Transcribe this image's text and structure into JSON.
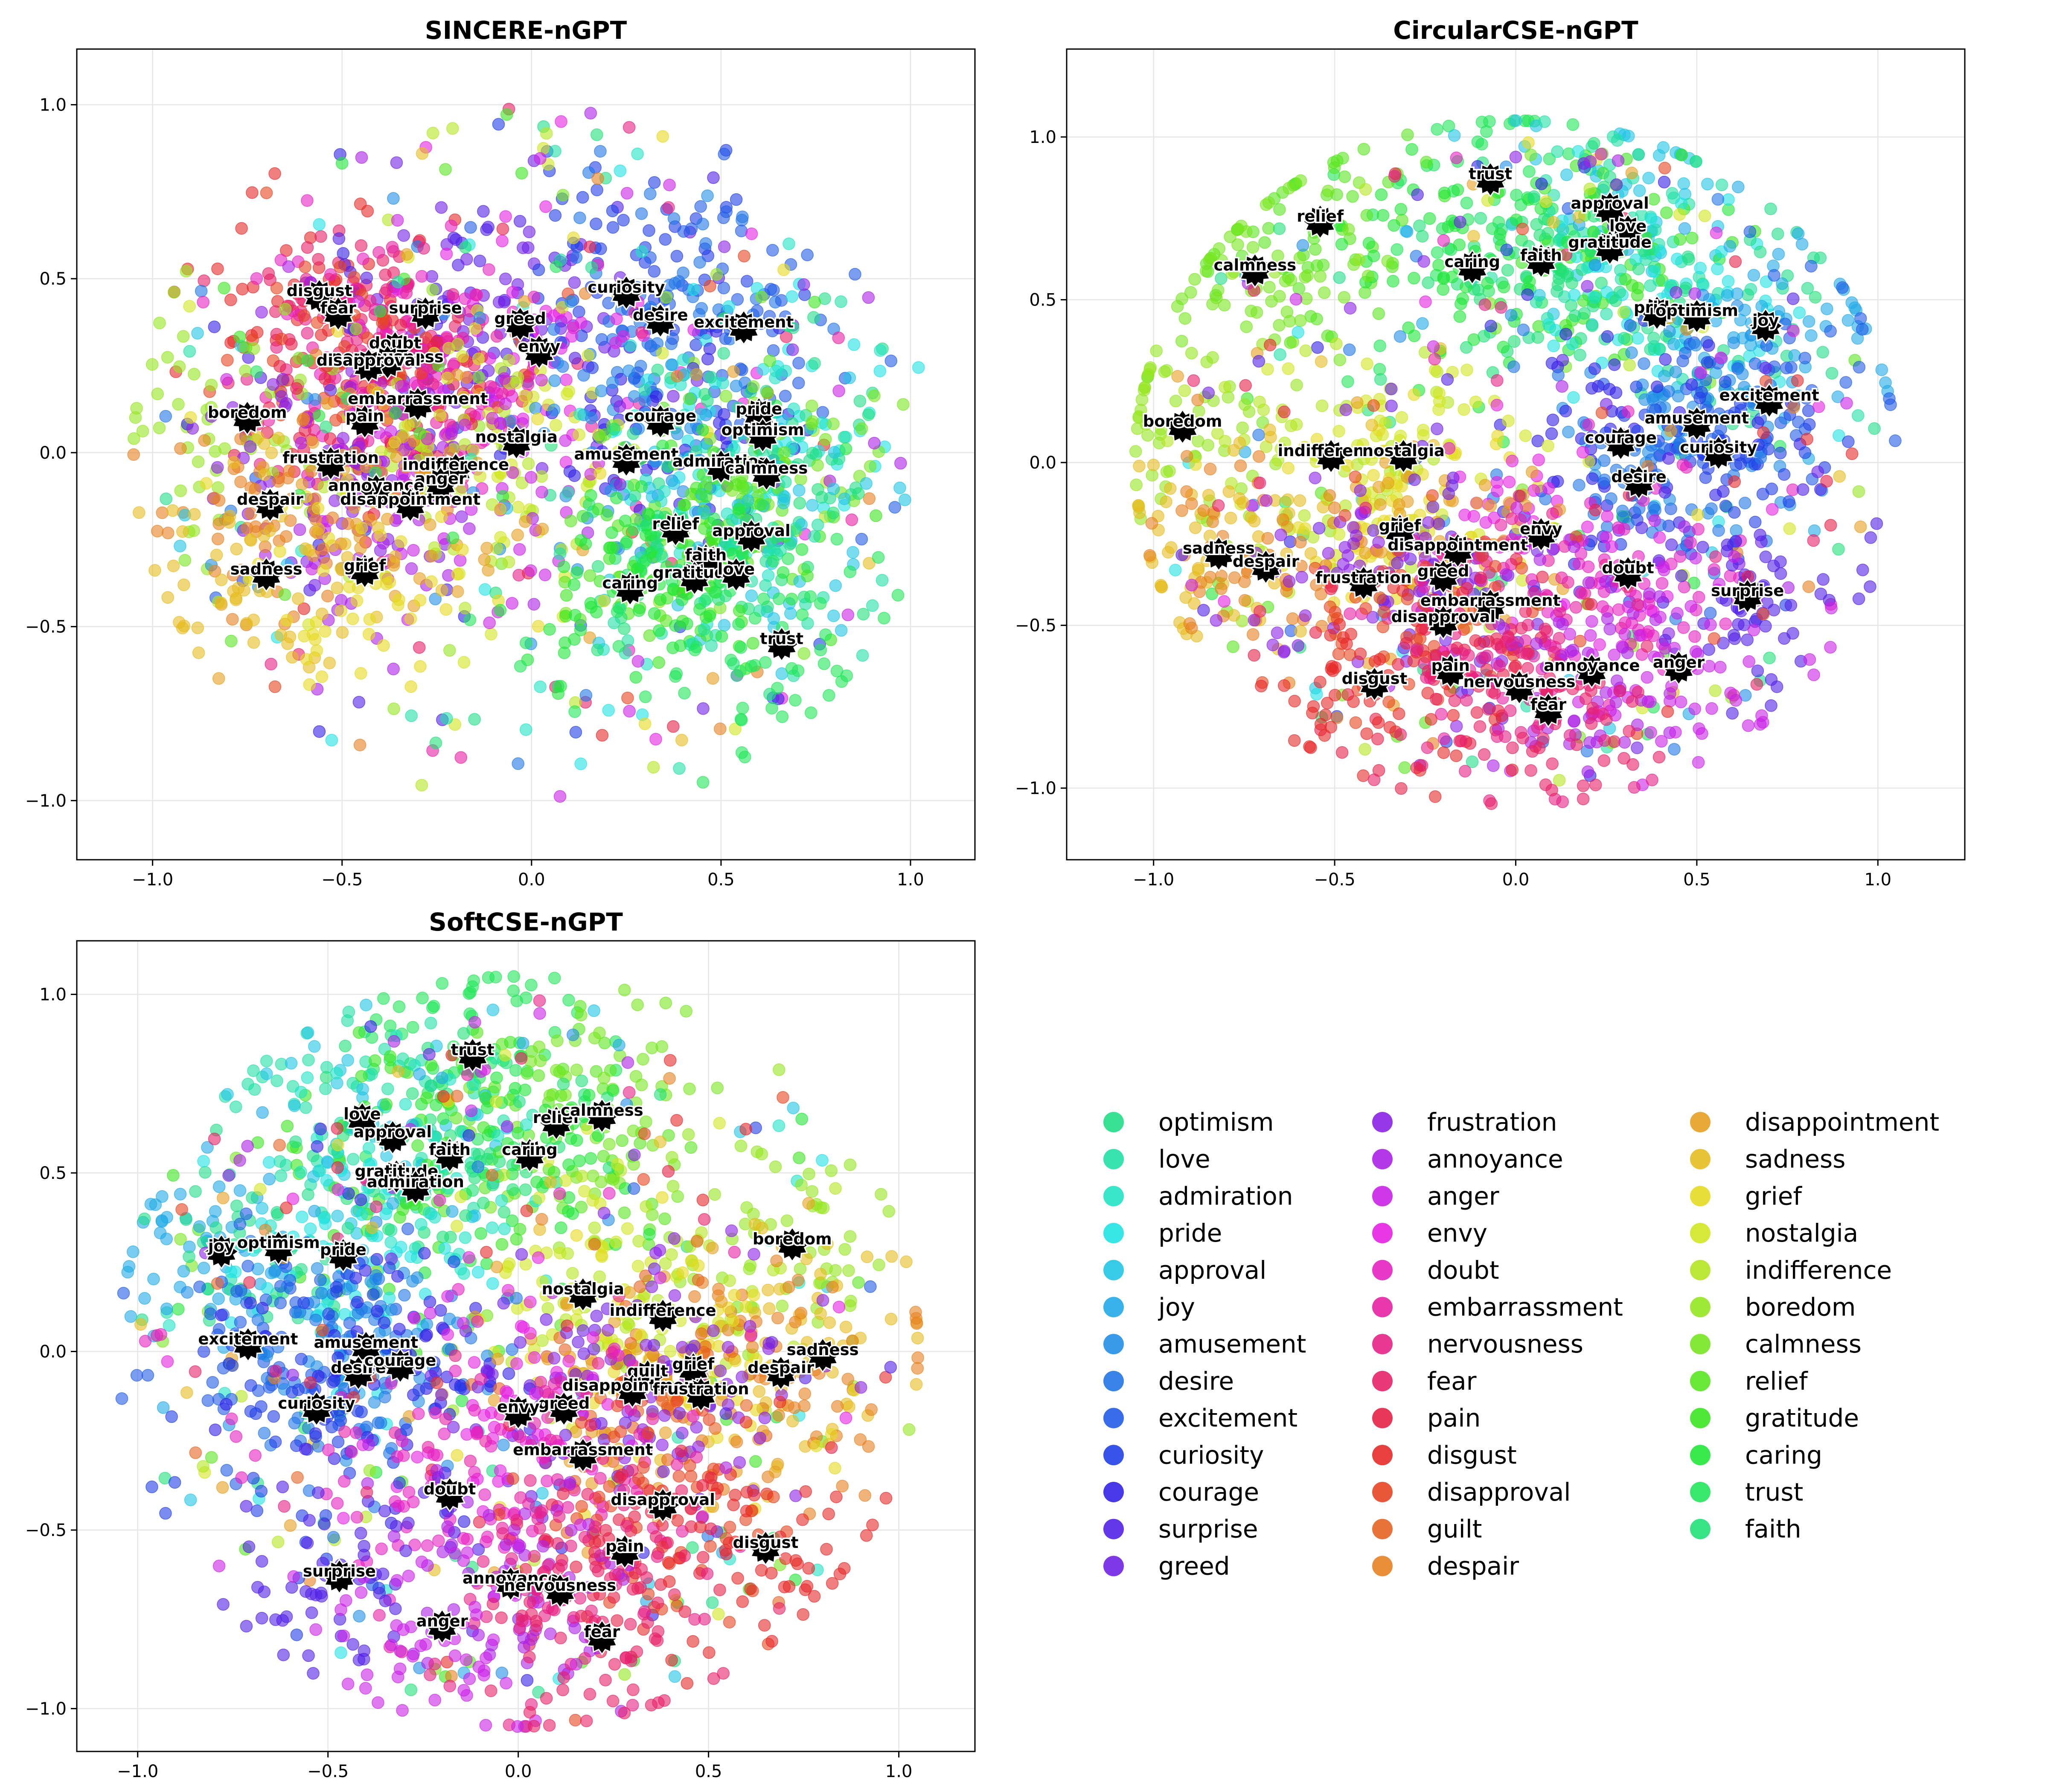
{
  "chart_data": [
    {
      "type": "scatter",
      "title": "SINCERE-nGPT",
      "xlabel": "",
      "ylabel": "",
      "xlim": [
        -1.2,
        1.17
      ],
      "ylim": [
        -1.17,
        1.16
      ],
      "xticks": [
        -1.0,
        -0.5,
        0.0,
        0.5,
        1.0
      ],
      "yticks": [
        -1.0,
        -0.5,
        0.0,
        0.5,
        1.0
      ],
      "xtick_labels": [
        "−1.0",
        "−0.5",
        "0.0",
        "0.5",
        "1.0"
      ],
      "ytick_labels": [
        "−1.0",
        "−0.5",
        "0.0",
        "0.5",
        "1.0"
      ],
      "grid": true,
      "centroids": [
        {
          "label": "disgust",
          "x": -0.56,
          "y": 0.45
        },
        {
          "label": "fear",
          "x": -0.51,
          "y": 0.4
        },
        {
          "label": "surprise",
          "x": -0.28,
          "y": 0.4
        },
        {
          "label": "greed",
          "x": -0.03,
          "y": 0.37
        },
        {
          "label": "curiosity",
          "x": 0.25,
          "y": 0.46
        },
        {
          "label": "desire",
          "x": 0.34,
          "y": 0.38
        },
        {
          "label": "excitement",
          "x": 0.56,
          "y": 0.36
        },
        {
          "label": "doubt",
          "x": -0.36,
          "y": 0.3
        },
        {
          "label": "envy",
          "x": 0.02,
          "y": 0.29
        },
        {
          "label": "nervousness",
          "x": -0.38,
          "y": 0.26
        },
        {
          "label": "disapproval",
          "x": -0.43,
          "y": 0.25
        },
        {
          "label": "embarrassment",
          "x": -0.3,
          "y": 0.14
        },
        {
          "label": "boredom",
          "x": -0.75,
          "y": 0.1
        },
        {
          "label": "pain",
          "x": -0.44,
          "y": 0.09
        },
        {
          "label": "pride",
          "x": 0.6,
          "y": 0.11
        },
        {
          "label": "courage",
          "x": 0.34,
          "y": 0.09
        },
        {
          "label": "optimism",
          "x": 0.61,
          "y": 0.05
        },
        {
          "label": "nostalgia",
          "x": -0.04,
          "y": 0.03
        },
        {
          "label": "amusement",
          "x": 0.25,
          "y": -0.02
        },
        {
          "label": "admiration",
          "x": 0.5,
          "y": -0.04
        },
        {
          "label": "calmness",
          "x": 0.62,
          "y": -0.06
        },
        {
          "label": "frustration",
          "x": -0.53,
          "y": -0.03
        },
        {
          "label": "indifference",
          "x": -0.2,
          "y": -0.05
        },
        {
          "label": "anger",
          "x": -0.24,
          "y": -0.09
        },
        {
          "label": "annoyance",
          "x": -0.41,
          "y": -0.11
        },
        {
          "label": "despair",
          "x": -0.69,
          "y": -0.15
        },
        {
          "label": "disappointment",
          "x": -0.32,
          "y": -0.15
        },
        {
          "label": "relief",
          "x": 0.38,
          "y": -0.22
        },
        {
          "label": "approval",
          "x": 0.58,
          "y": -0.24
        },
        {
          "label": "faith",
          "x": 0.46,
          "y": -0.31
        },
        {
          "label": "gratitude",
          "x": 0.43,
          "y": -0.36
        },
        {
          "label": "love",
          "x": 0.54,
          "y": -0.35
        },
        {
          "label": "sadness",
          "x": -0.7,
          "y": -0.35
        },
        {
          "label": "grief",
          "x": -0.44,
          "y": -0.34
        },
        {
          "label": "caring",
          "x": 0.26,
          "y": -0.39
        },
        {
          "label": "trust",
          "x": 0.66,
          "y": -0.55
        }
      ]
    },
    {
      "type": "scatter",
      "title": "CircularCSE-nGPT",
      "xlabel": "",
      "ylabel": "",
      "xlim": [
        -1.24,
        1.24
      ],
      "ylim": [
        -1.22,
        1.27
      ],
      "xticks": [
        -1.0,
        -0.5,
        0.0,
        0.5,
        1.0
      ],
      "yticks": [
        -1.0,
        -0.5,
        0.0,
        0.5,
        1.0
      ],
      "xtick_labels": [
        "−1.0",
        "−0.5",
        "0.0",
        "0.5",
        "1.0"
      ],
      "ytick_labels": [
        "−1.0",
        "−0.5",
        "0.0",
        "0.5",
        "1.0"
      ],
      "grid": true,
      "centroids": [
        {
          "label": "trust",
          "x": -0.07,
          "y": 0.87
        },
        {
          "label": "approval",
          "x": 0.26,
          "y": 0.78
        },
        {
          "label": "love",
          "x": 0.31,
          "y": 0.71
        },
        {
          "label": "gratitude",
          "x": 0.26,
          "y": 0.66
        },
        {
          "label": "relief",
          "x": -0.54,
          "y": 0.74
        },
        {
          "label": "faith",
          "x": 0.07,
          "y": 0.62
        },
        {
          "label": "caring",
          "x": -0.12,
          "y": 0.6
        },
        {
          "label": "calmness",
          "x": -0.72,
          "y": 0.59
        },
        {
          "label": "pride",
          "x": 0.39,
          "y": 0.46
        },
        {
          "label": "optimism",
          "x": 0.5,
          "y": 0.45
        },
        {
          "label": "joy",
          "x": 0.69,
          "y": 0.42
        },
        {
          "label": "excitement",
          "x": 0.7,
          "y": 0.19
        },
        {
          "label": "amusement",
          "x": 0.5,
          "y": 0.12
        },
        {
          "label": "boredom",
          "x": -0.92,
          "y": 0.11
        },
        {
          "label": "courage",
          "x": 0.29,
          "y": 0.06
        },
        {
          "label": "curiosity",
          "x": 0.56,
          "y": 0.03
        },
        {
          "label": "indifference",
          "x": -0.51,
          "y": 0.02
        },
        {
          "label": "nostalgia",
          "x": -0.31,
          "y": 0.02
        },
        {
          "label": "desire",
          "x": 0.34,
          "y": -0.06
        },
        {
          "label": "grief",
          "x": -0.32,
          "y": -0.21
        },
        {
          "label": "envy",
          "x": 0.07,
          "y": -0.22
        },
        {
          "label": "disappointment",
          "x": -0.16,
          "y": -0.27
        },
        {
          "label": "sadness",
          "x": -0.82,
          "y": -0.28
        },
        {
          "label": "despair",
          "x": -0.69,
          "y": -0.32
        },
        {
          "label": "frustration",
          "x": -0.42,
          "y": -0.37
        },
        {
          "label": "greed",
          "x": -0.2,
          "y": -0.35
        },
        {
          "label": "doubt",
          "x": 0.31,
          "y": -0.34
        },
        {
          "label": "surprise",
          "x": 0.64,
          "y": -0.41
        },
        {
          "label": "embarrassment",
          "x": -0.07,
          "y": -0.44
        },
        {
          "label": "disapproval",
          "x": -0.2,
          "y": -0.49
        },
        {
          "label": "pain",
          "x": -0.18,
          "y": -0.64
        },
        {
          "label": "annoyance",
          "x": 0.21,
          "y": -0.64
        },
        {
          "label": "anger",
          "x": 0.45,
          "y": -0.63
        },
        {
          "label": "disgust",
          "x": -0.39,
          "y": -0.68
        },
        {
          "label": "nervousness",
          "x": 0.01,
          "y": -0.69
        },
        {
          "label": "fear",
          "x": 0.09,
          "y": -0.76
        }
      ]
    },
    {
      "type": "scatter",
      "title": "SoftCSE-nGPT",
      "xlabel": "",
      "ylabel": "",
      "xlim": [
        -1.16,
        1.2
      ],
      "ylim": [
        -1.12,
        1.15
      ],
      "xticks": [
        -1.0,
        -0.5,
        0.0,
        0.5,
        1.0
      ],
      "yticks": [
        -1.0,
        -0.5,
        0.0,
        0.5,
        1.0
      ],
      "xtick_labels": [
        "−1.0",
        "−0.5",
        "0.0",
        "0.5",
        "1.0"
      ],
      "ytick_labels": [
        "−1.0",
        "−0.5",
        "0.0",
        "0.5",
        "1.0"
      ],
      "grid": true,
      "centroids": [
        {
          "label": "trust",
          "x": -0.12,
          "y": 0.83
        },
        {
          "label": "love",
          "x": -0.41,
          "y": 0.65
        },
        {
          "label": "relief",
          "x": 0.1,
          "y": 0.64
        },
        {
          "label": "calmness",
          "x": 0.22,
          "y": 0.66
        },
        {
          "label": "approval",
          "x": -0.33,
          "y": 0.6
        },
        {
          "label": "faith",
          "x": -0.18,
          "y": 0.55
        },
        {
          "label": "caring",
          "x": 0.03,
          "y": 0.55
        },
        {
          "label": "gratitude",
          "x": -0.32,
          "y": 0.49
        },
        {
          "label": "admiration",
          "x": -0.27,
          "y": 0.46
        },
        {
          "label": "joy",
          "x": -0.78,
          "y": 0.28
        },
        {
          "label": "optimism",
          "x": -0.63,
          "y": 0.29
        },
        {
          "label": "pride",
          "x": -0.46,
          "y": 0.27
        },
        {
          "label": "boredom",
          "x": 0.72,
          "y": 0.3
        },
        {
          "label": "nostalgia",
          "x": 0.17,
          "y": 0.16
        },
        {
          "label": "indifference",
          "x": 0.38,
          "y": 0.1
        },
        {
          "label": "excitement",
          "x": -0.71,
          "y": 0.02
        },
        {
          "label": "amusement",
          "x": -0.4,
          "y": 0.01
        },
        {
          "label": "sadness",
          "x": 0.8,
          "y": -0.01
        },
        {
          "label": "desire",
          "x": -0.42,
          "y": -0.06
        },
        {
          "label": "courage",
          "x": -0.31,
          "y": -0.04
        },
        {
          "label": "despair",
          "x": 0.69,
          "y": -0.06
        },
        {
          "label": "grief",
          "x": 0.46,
          "y": -0.05
        },
        {
          "label": "guilt",
          "x": 0.34,
          "y": -0.07
        },
        {
          "label": "disappointment",
          "x": 0.3,
          "y": -0.11
        },
        {
          "label": "frustration",
          "x": 0.48,
          "y": -0.12
        },
        {
          "label": "greed",
          "x": 0.12,
          "y": -0.16
        },
        {
          "label": "envy",
          "x": 0.0,
          "y": -0.17
        },
        {
          "label": "curiosity",
          "x": -0.53,
          "y": -0.16
        },
        {
          "label": "embarrassment",
          "x": 0.17,
          "y": -0.29
        },
        {
          "label": "doubt",
          "x": -0.18,
          "y": -0.4
        },
        {
          "label": "disapproval",
          "x": 0.38,
          "y": -0.43
        },
        {
          "label": "pain",
          "x": 0.28,
          "y": -0.56
        },
        {
          "label": "disgust",
          "x": 0.65,
          "y": -0.55
        },
        {
          "label": "surprise",
          "x": -0.47,
          "y": -0.63
        },
        {
          "label": "annoyance",
          "x": -0.02,
          "y": -0.65
        },
        {
          "label": "nervousness",
          "x": 0.11,
          "y": -0.67
        },
        {
          "label": "anger",
          "x": -0.2,
          "y": -0.77
        },
        {
          "label": "fear",
          "x": 0.22,
          "y": -0.8
        }
      ]
    }
  ],
  "legend": {
    "placement": "bottom-right",
    "columns": [
      [
        {
          "label": "optimism",
          "color": "#22dd88"
        },
        {
          "label": "love",
          "color": "#22e0a6"
        },
        {
          "label": "admiration",
          "color": "#22e3c4"
        },
        {
          "label": "pride",
          "color": "#22e2e3"
        },
        {
          "label": "approval",
          "color": "#22c5e4"
        },
        {
          "label": "joy",
          "color": "#22aae6"
        },
        {
          "label": "amusement",
          "color": "#228fe6"
        },
        {
          "label": "desire",
          "color": "#2276e6"
        },
        {
          "label": "excitement",
          "color": "#225ce6"
        },
        {
          "label": "curiosity",
          "color": "#2240e6"
        },
        {
          "label": "courage",
          "color": "#3322e6"
        },
        {
          "label": "surprise",
          "color": "#5222e6"
        },
        {
          "label": "greed",
          "color": "#7022e6"
        }
      ],
      [
        {
          "label": "frustration",
          "color": "#8c22e6"
        },
        {
          "label": "annoyance",
          "color": "#ab22e6"
        },
        {
          "label": "anger",
          "color": "#c922e6"
        },
        {
          "label": "envy",
          "color": "#e522e2"
        },
        {
          "label": "doubt",
          "color": "#e622c2"
        },
        {
          "label": "embarrassment",
          "color": "#e622a3"
        },
        {
          "label": "nervousness",
          "color": "#e62285"
        },
        {
          "label": "fear",
          "color": "#e62266"
        },
        {
          "label": "pain",
          "color": "#e62248"
        },
        {
          "label": "disgust",
          "color": "#e62a2a"
        },
        {
          "label": "disapproval",
          "color": "#e64622"
        },
        {
          "label": "guilt",
          "color": "#e66422"
        },
        {
          "label": "despair",
          "color": "#e68222"
        }
      ],
      [
        {
          "label": "disappointment",
          "color": "#e6a022"
        },
        {
          "label": "sadness",
          "color": "#e6bc22"
        },
        {
          "label": "grief",
          "color": "#e6da22"
        },
        {
          "label": "nostalgia",
          "color": "#d2e622"
        },
        {
          "label": "indifference",
          "color": "#b4e622"
        },
        {
          "label": "boredom",
          "color": "#96e622"
        },
        {
          "label": "calmness",
          "color": "#78e622"
        },
        {
          "label": "relief",
          "color": "#5ae622"
        },
        {
          "label": "gratitude",
          "color": "#3ce622"
        },
        {
          "label": "caring",
          "color": "#22e63a"
        },
        {
          "label": "trust",
          "color": "#22e65a"
        },
        {
          "label": "faith",
          "color": "#22e078"
        }
      ]
    ]
  },
  "colors": {
    "axes": "#000000",
    "grid": "#e6e6e6",
    "background": "#ffffff"
  }
}
